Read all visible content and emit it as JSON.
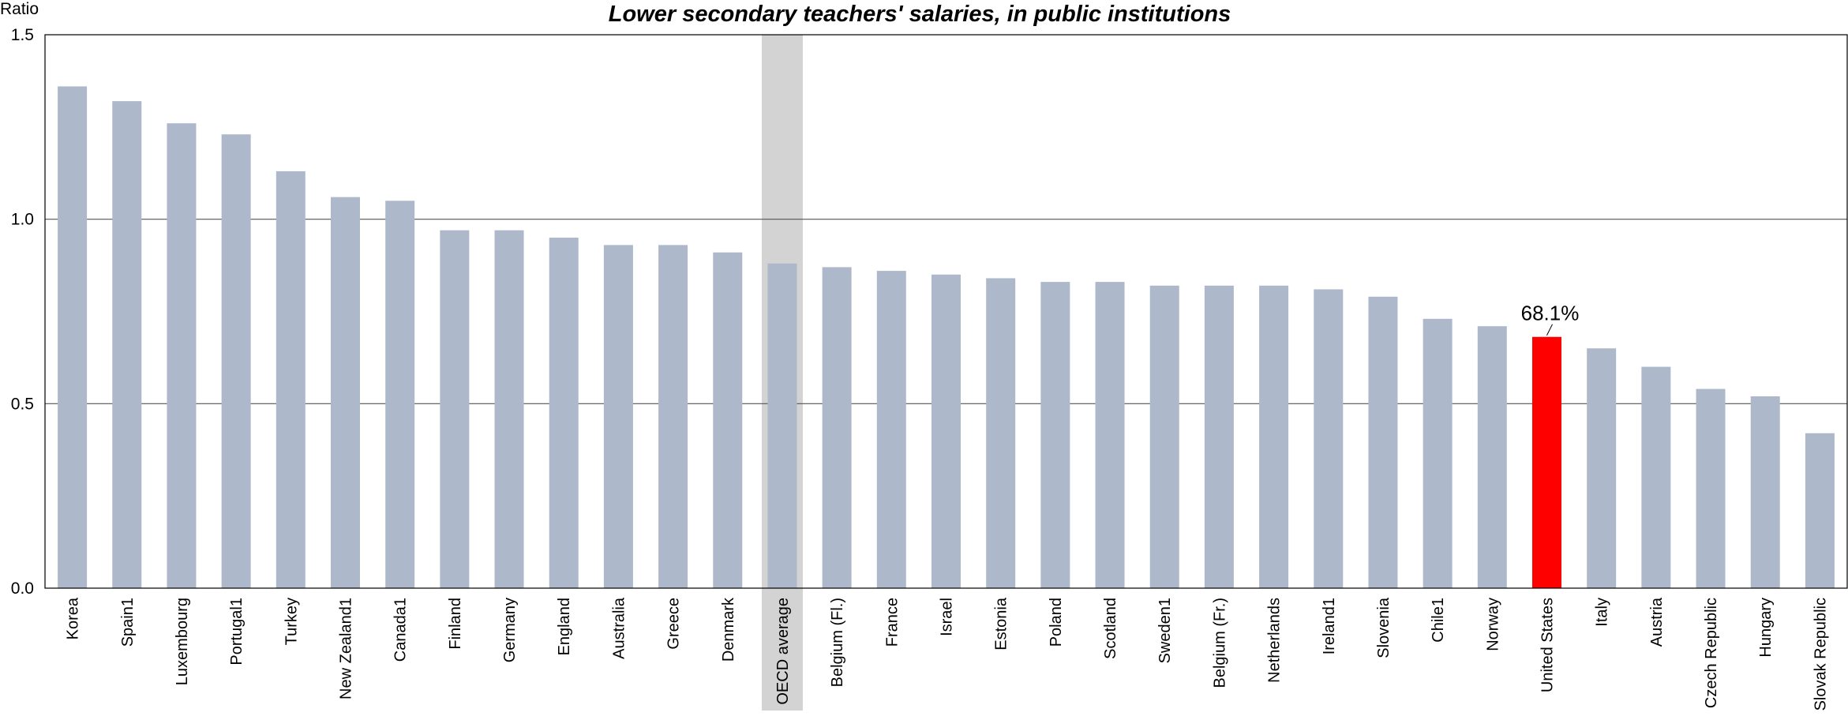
{
  "chart_data": {
    "type": "bar",
    "title": "Lower secondary teachers' salaries, in public institutions",
    "ylabel": "Ratio",
    "xlabel": "",
    "ylim": [
      0,
      1.5
    ],
    "yticks": [
      "0.0",
      "0.5",
      "1.0",
      "1.5"
    ],
    "grid": true,
    "categories": [
      "Korea",
      "Spain1",
      "Luxembourg",
      "Portugal1",
      "Turkey",
      "New Zealand1",
      "Canada1",
      "Finland",
      "Germany",
      "England",
      "Australia",
      "Greece",
      "Denmark",
      "OECD average",
      "Belgium (Fl.)",
      "France",
      "Israel",
      "Estonia",
      "Poland",
      "Scotland",
      "Sweden1",
      "Belgium (Fr.)",
      "Netherlands",
      "Ireland1",
      "Slovenia",
      "Chile1",
      "Norway",
      "United States",
      "Italy",
      "Austria",
      "Czech Republic",
      "Hungary",
      "Slovak Republic"
    ],
    "values": [
      1.36,
      1.32,
      1.26,
      1.23,
      1.13,
      1.06,
      1.05,
      0.97,
      0.97,
      0.95,
      0.93,
      0.93,
      0.91,
      0.88,
      0.87,
      0.86,
      0.85,
      0.84,
      0.83,
      0.83,
      0.82,
      0.82,
      0.82,
      0.81,
      0.79,
      0.73,
      0.71,
      0.681,
      0.65,
      0.6,
      0.54,
      0.52,
      0.42
    ],
    "highlight": {
      "category": "United States",
      "label": "68.1%",
      "color": "#ff0000"
    },
    "reference": {
      "category": "OECD average",
      "band_color": "#d3d3d3"
    },
    "bar_color": "#adb9ca"
  }
}
